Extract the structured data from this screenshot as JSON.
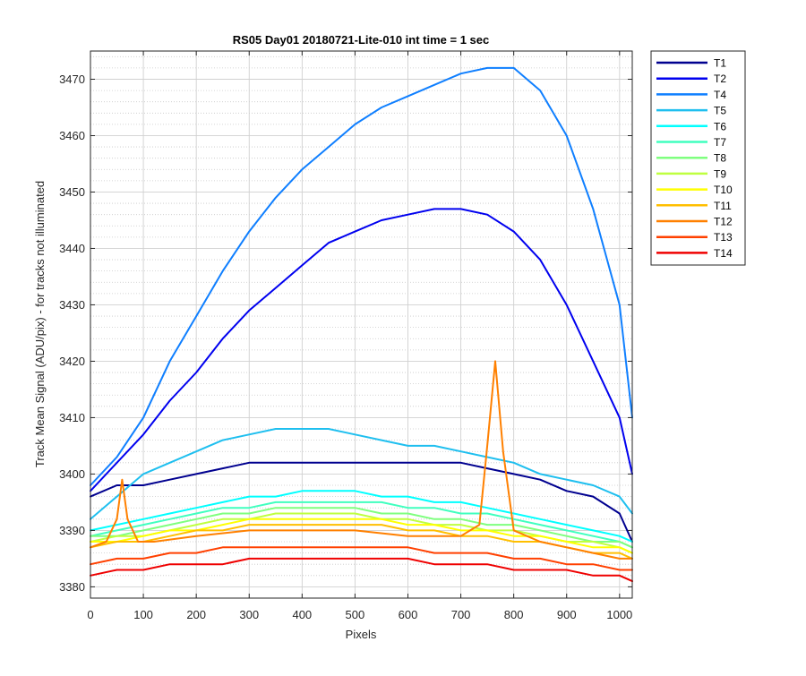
{
  "chart_data": {
    "type": "line",
    "title": "RS05 Day01 20180721-Lite-010 int time = 1 sec",
    "xlabel": "Pixels",
    "ylabel": "Track Mean Signal (ADU/pix) - for tracks not illuminated",
    "xlim": [
      0,
      1024
    ],
    "ylim": [
      3378,
      3475
    ],
    "xticks": [
      0,
      100,
      200,
      300,
      400,
      500,
      600,
      700,
      800,
      900,
      1000
    ],
    "yticks": [
      3380,
      3390,
      3400,
      3410,
      3420,
      3430,
      3440,
      3450,
      3460,
      3470
    ],
    "grid": true,
    "minor_grid": true,
    "legend_position": "outside-top-right",
    "series": [
      {
        "name": "T1",
        "color": "#00008f",
        "x": [
          0,
          50,
          100,
          150,
          200,
          250,
          300,
          350,
          400,
          450,
          500,
          550,
          600,
          650,
          700,
          750,
          800,
          850,
          900,
          950,
          1000,
          1024
        ],
        "y": [
          3396,
          3398,
          3398,
          3399,
          3400,
          3401,
          3402,
          3402,
          3402,
          3402,
          3402,
          3402,
          3402,
          3402,
          3402,
          3401,
          3400,
          3399,
          3397,
          3396,
          3393,
          3388
        ]
      },
      {
        "name": "T2",
        "color": "#0000ef",
        "x": [
          0,
          50,
          100,
          150,
          200,
          250,
          300,
          350,
          400,
          450,
          500,
          550,
          600,
          650,
          700,
          750,
          800,
          850,
          900,
          950,
          1000,
          1024
        ],
        "y": [
          3397,
          3402,
          3407,
          3413,
          3418,
          3424,
          3429,
          3433,
          3437,
          3441,
          3443,
          3445,
          3446,
          3447,
          3447,
          3446,
          3443,
          3438,
          3430,
          3420,
          3410,
          3400
        ]
      },
      {
        "name": "T4",
        "color": "#0f7fff",
        "x": [
          0,
          50,
          100,
          150,
          200,
          250,
          300,
          350,
          400,
          450,
          500,
          550,
          600,
          650,
          700,
          750,
          800,
          850,
          900,
          950,
          1000,
          1024
        ],
        "y": [
          3398,
          3403,
          3410,
          3420,
          3428,
          3436,
          3443,
          3449,
          3454,
          3458,
          3462,
          3465,
          3467,
          3469,
          3471,
          3472,
          3472,
          3468,
          3460,
          3447,
          3430,
          3410
        ]
      },
      {
        "name": "T5",
        "color": "#1fbfef",
        "x": [
          0,
          50,
          100,
          150,
          200,
          250,
          300,
          350,
          400,
          450,
          500,
          550,
          600,
          650,
          700,
          750,
          800,
          850,
          900,
          950,
          1000,
          1024
        ],
        "y": [
          3392,
          3396,
          3400,
          3402,
          3404,
          3406,
          3407,
          3408,
          3408,
          3408,
          3407,
          3406,
          3405,
          3405,
          3404,
          3403,
          3402,
          3400,
          3399,
          3398,
          3396,
          3393
        ]
      },
      {
        "name": "T6",
        "color": "#00ffff",
        "x": [
          0,
          50,
          100,
          150,
          200,
          250,
          300,
          350,
          400,
          450,
          500,
          550,
          600,
          650,
          700,
          750,
          800,
          850,
          900,
          950,
          1000,
          1024
        ],
        "y": [
          3390,
          3391,
          3392,
          3393,
          3394,
          3395,
          3396,
          3396,
          3397,
          3397,
          3397,
          3396,
          3396,
          3395,
          3395,
          3394,
          3393,
          3392,
          3391,
          3390,
          3389,
          3388
        ]
      },
      {
        "name": "T7",
        "color": "#40ffbf",
        "x": [
          0,
          50,
          100,
          150,
          200,
          250,
          300,
          350,
          400,
          450,
          500,
          550,
          600,
          650,
          700,
          750,
          800,
          850,
          900,
          950,
          1000,
          1024
        ],
        "y": [
          3389,
          3390,
          3391,
          3392,
          3393,
          3394,
          3394,
          3395,
          3395,
          3395,
          3395,
          3395,
          3394,
          3394,
          3393,
          3393,
          3392,
          3391,
          3390,
          3389,
          3388,
          3387
        ]
      },
      {
        "name": "T8",
        "color": "#7fff7f",
        "x": [
          0,
          50,
          100,
          150,
          200,
          250,
          300,
          350,
          400,
          450,
          500,
          550,
          600,
          650,
          700,
          750,
          800,
          850,
          900,
          950,
          1000,
          1024
        ],
        "y": [
          3389,
          3389,
          3390,
          3391,
          3392,
          3393,
          3393,
          3394,
          3394,
          3394,
          3394,
          3393,
          3393,
          3392,
          3392,
          3391,
          3391,
          3390,
          3389,
          3388,
          3388,
          3387
        ]
      },
      {
        "name": "T9",
        "color": "#bfff40",
        "x": [
          0,
          50,
          100,
          150,
          200,
          250,
          300,
          350,
          400,
          450,
          500,
          550,
          600,
          650,
          700,
          750,
          800,
          850,
          900,
          950,
          1000,
          1024
        ],
        "y": [
          3388,
          3389,
          3389,
          3390,
          3391,
          3392,
          3392,
          3393,
          3393,
          3393,
          3393,
          3392,
          3392,
          3391,
          3391,
          3390,
          3390,
          3389,
          3388,
          3388,
          3387,
          3386
        ]
      },
      {
        "name": "T10",
        "color": "#ffff00",
        "x": [
          0,
          50,
          100,
          150,
          200,
          250,
          300,
          350,
          400,
          450,
          500,
          550,
          600,
          650,
          700,
          750,
          800,
          850,
          900,
          950,
          1000,
          1024
        ],
        "y": [
          3388,
          3388,
          3389,
          3390,
          3390,
          3391,
          3392,
          3392,
          3392,
          3392,
          3392,
          3392,
          3391,
          3391,
          3390,
          3390,
          3389,
          3389,
          3388,
          3387,
          3387,
          3386
        ]
      },
      {
        "name": "T11",
        "color": "#ffbf00",
        "x": [
          0,
          50,
          100,
          150,
          200,
          250,
          300,
          350,
          400,
          450,
          500,
          550,
          600,
          650,
          700,
          750,
          800,
          850,
          900,
          950,
          1000,
          1024
        ],
        "y": [
          3387,
          3388,
          3388,
          3389,
          3390,
          3390,
          3391,
          3391,
          3391,
          3391,
          3391,
          3391,
          3390,
          3390,
          3389,
          3389,
          3388,
          3388,
          3387,
          3386,
          3386,
          3385
        ]
      },
      {
        "name": "T12",
        "color": "#ff8000",
        "x": [
          0,
          30,
          50,
          60,
          70,
          90,
          120,
          200,
          300,
          400,
          500,
          600,
          700,
          735,
          750,
          765,
          780,
          800,
          850,
          900,
          950,
          1000,
          1024
        ],
        "y": [
          3387,
          3388,
          3392,
          3399,
          3392,
          3388,
          3388,
          3389,
          3390,
          3390,
          3390,
          3389,
          3389,
          3391,
          3405,
          3420,
          3404,
          3390,
          3388,
          3387,
          3386,
          3385,
          3385
        ]
      },
      {
        "name": "T13",
        "color": "#ff4000",
        "x": [
          0,
          50,
          100,
          150,
          200,
          250,
          300,
          350,
          400,
          450,
          500,
          550,
          600,
          650,
          700,
          750,
          800,
          850,
          900,
          950,
          1000,
          1024
        ],
        "y": [
          3384,
          3385,
          3385,
          3386,
          3386,
          3387,
          3387,
          3387,
          3387,
          3387,
          3387,
          3387,
          3387,
          3386,
          3386,
          3386,
          3385,
          3385,
          3384,
          3384,
          3383,
          3383
        ]
      },
      {
        "name": "T14",
        "color": "#ef0000",
        "x": [
          0,
          50,
          100,
          150,
          200,
          250,
          300,
          350,
          400,
          450,
          500,
          550,
          600,
          650,
          700,
          750,
          800,
          850,
          900,
          950,
          1000,
          1024
        ],
        "y": [
          3382,
          3383,
          3383,
          3384,
          3384,
          3384,
          3385,
          3385,
          3385,
          3385,
          3385,
          3385,
          3385,
          3384,
          3384,
          3384,
          3383,
          3383,
          3383,
          3382,
          3382,
          3381
        ]
      }
    ]
  }
}
